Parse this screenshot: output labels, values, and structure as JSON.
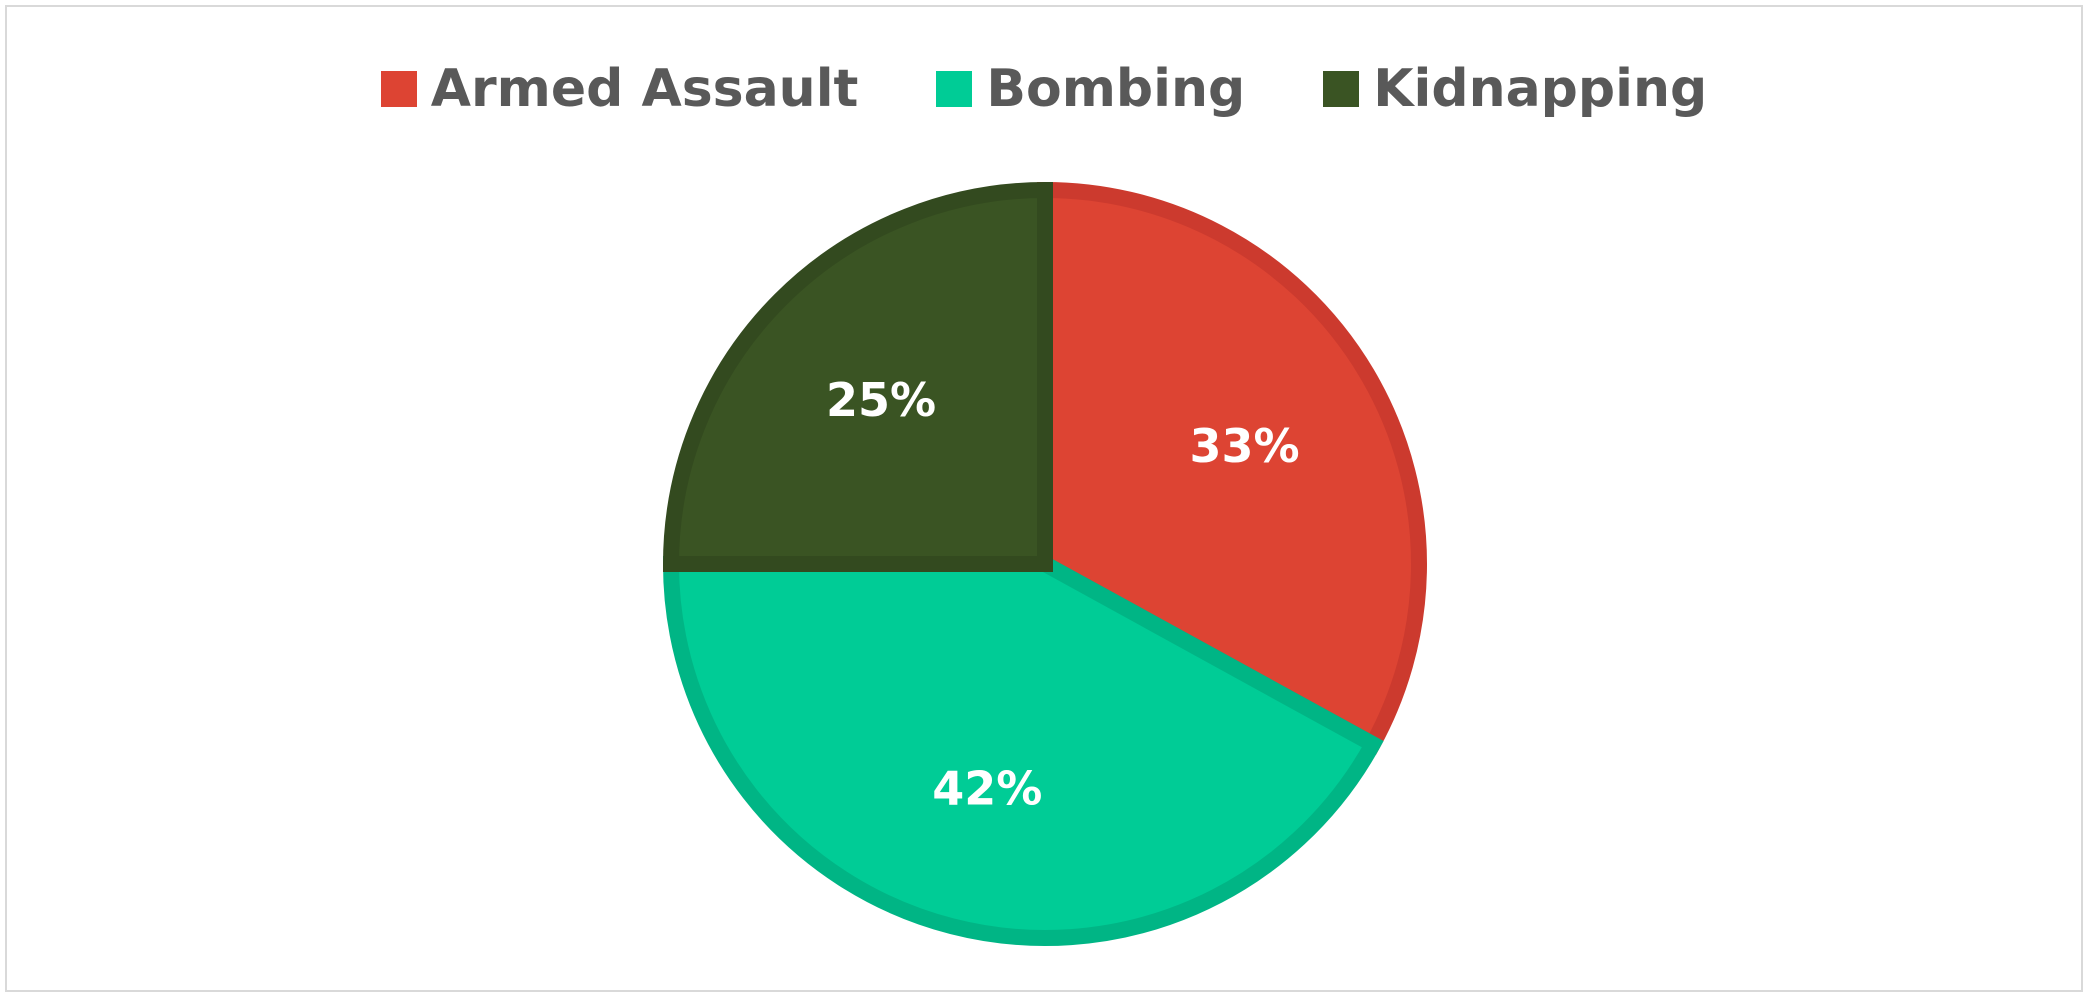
{
  "chart_data": {
    "type": "pie",
    "title": "",
    "legend_position": "top",
    "categories": [
      "Armed Assault",
      "Bombing",
      "Kidnapping"
    ],
    "values": [
      33,
      42,
      25
    ],
    "data_labels": [
      "33%",
      "42%",
      "25%"
    ],
    "colors": [
      "#dd4433",
      "#00cc96",
      "#3a5423"
    ],
    "stroke_colors": [
      "#cc3a2e",
      "#00b585",
      "#334a1f"
    ],
    "start_angle_deg": 0,
    "direction": "clockwise"
  }
}
